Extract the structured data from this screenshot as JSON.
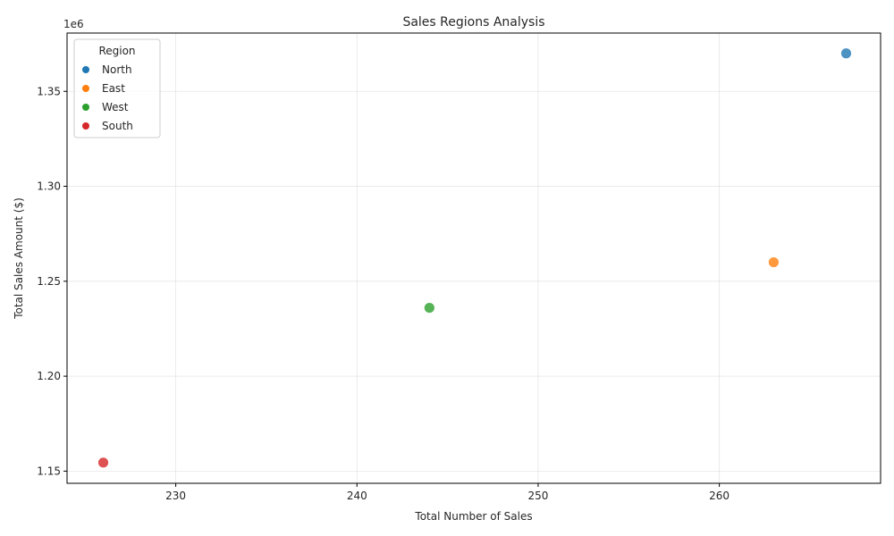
{
  "chart_data": {
    "type": "scatter",
    "title": "Sales Regions Analysis",
    "xlabel": "Total Number of Sales",
    "ylabel": "Total Sales Amount ($)",
    "y_offset_label": "1e6",
    "xlim": [
      224.0,
      268.9
    ],
    "ylim": [
      1143600,
      1380700
    ],
    "xticks": [
      230,
      240,
      250,
      260
    ],
    "yticks": [
      1.15,
      1.2,
      1.25,
      1.3,
      1.35
    ],
    "ytick_labels": [
      "1.15",
      "1.20",
      "1.25",
      "1.30",
      "1.35"
    ],
    "grid": true,
    "legend": {
      "title": "Region",
      "placement": "upper-left"
    },
    "series": [
      {
        "name": "North",
        "color": "#1f77b4",
        "points": [
          [
            267,
            1370000
          ]
        ]
      },
      {
        "name": "East",
        "color": "#ff7f0e",
        "points": [
          [
            263,
            1260000
          ]
        ]
      },
      {
        "name": "West",
        "color": "#2ca02c",
        "points": [
          [
            244,
            1236000
          ]
        ]
      },
      {
        "name": "South",
        "color": "#d62728",
        "points": [
          [
            226,
            1154500
          ]
        ]
      }
    ]
  }
}
